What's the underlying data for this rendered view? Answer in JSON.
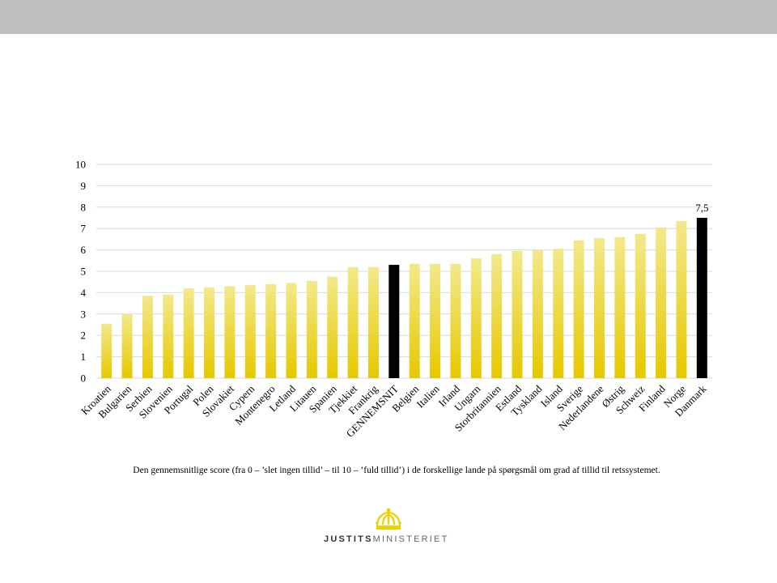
{
  "colors": {
    "band": "#c0bfbd",
    "bar_top": "#f2e98c",
    "bar_bottom": "#e6c800",
    "highlight": "#000000",
    "grid": "#d9d9d9",
    "logo_gold": "#f0cf00"
  },
  "chart_data": {
    "type": "bar",
    "categories": [
      "Kroatien",
      "Bulgarien",
      "Serbien",
      "Slovenien",
      "Portugal",
      "Polen",
      "Slovakiet",
      "Cypern",
      "Montenegro",
      "Letland",
      "Litauen",
      "Spanien",
      "Tjekkiet",
      "Frankrig",
      "GENNEMSNIT",
      "Belgien",
      "Italien",
      "Irland",
      "Ungarn",
      "Storbritannien",
      "Estland",
      "Tyskland",
      "Island",
      "Sverige",
      "Nederlandene",
      "Østrig",
      "Schweiz",
      "Finland",
      "Norge",
      "Danmark"
    ],
    "values": [
      2.55,
      3.0,
      3.85,
      3.9,
      4.2,
      4.25,
      4.3,
      4.35,
      4.4,
      4.45,
      4.55,
      4.75,
      5.2,
      5.2,
      5.3,
      5.35,
      5.35,
      5.35,
      5.6,
      5.8,
      5.95,
      6.0,
      6.05,
      6.45,
      6.55,
      6.6,
      6.75,
      7.05,
      7.35,
      7.5
    ],
    "highlighted": [
      "GENNEMSNIT",
      "Danmark"
    ],
    "ylim": [
      0,
      10
    ],
    "yticks": [
      "0",
      "1",
      "2",
      "3",
      "4",
      "5",
      "6",
      "7",
      "8",
      "9",
      "10"
    ],
    "data_labels": [
      {
        "category": "Danmark",
        "text": "7,5"
      }
    ],
    "grid": true,
    "title": "",
    "xlabel": "",
    "ylabel": ""
  },
  "caption": "Den gennemsnitlige score (fra 0 – ’slet ingen tillid’  – til 10 – ’fuld tillid’)  i de forskellige lande på spørgsmål om grad af tillid  til retssystemet.",
  "logo": {
    "icon": "crown-icon",
    "text_bold": "JUSTITS",
    "text_regular": "MINISTERIET"
  }
}
